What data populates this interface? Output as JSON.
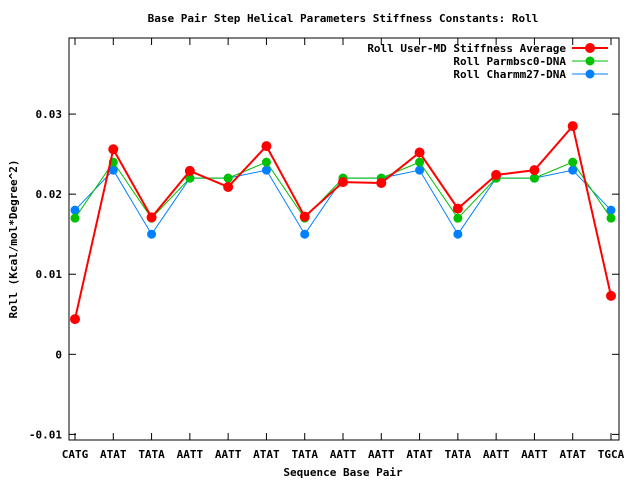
{
  "chart_data": {
    "type": "line",
    "title": "Base Pair Step Helical Parameters Stiffness Constants: Roll",
    "xlabel": "Sequence Base Pair",
    "ylabel": "Roll (Kcal/mol*Degree^2)",
    "categories": [
      "CATG",
      "ATAT",
      "TATA",
      "AATT",
      "AATT",
      "ATAT",
      "TATA",
      "AATT",
      "AATT",
      "ATAT",
      "TATA",
      "AATT",
      "AATT",
      "ATAT",
      "TGCA"
    ],
    "ylim": [
      -0.0107,
      0.0395
    ],
    "yticks": [
      -0.01,
      0,
      0.01,
      0.02,
      0.03
    ],
    "ytick_labels": [
      "-0.01",
      "0",
      "0.01",
      "0.02",
      "0.03"
    ],
    "grid": false,
    "legend_position": "top-right",
    "series": [
      {
        "name": "Roll User-MD Stiffness Average",
        "color": "#ff0000",
        "values": [
          0.0044,
          0.0256,
          0.0171,
          0.0229,
          0.0209,
          0.026,
          0.0172,
          0.0215,
          0.0214,
          0.0252,
          0.0182,
          0.0224,
          0.023,
          0.0285,
          0.0073
        ]
      },
      {
        "name": "Roll Parmbsc0-DNA",
        "color": "#00c000",
        "values": [
          0.017,
          0.024,
          0.017,
          0.022,
          0.022,
          0.024,
          0.017,
          0.022,
          0.022,
          0.024,
          0.017,
          0.022,
          0.022,
          0.024,
          0.017
        ]
      },
      {
        "name": "Roll Charmm27-DNA",
        "color": "#0080ff",
        "values": [
          0.018,
          0.023,
          0.015,
          0.022,
          0.022,
          0.023,
          0.015,
          0.022,
          0.022,
          0.023,
          0.015,
          0.022,
          0.022,
          0.023,
          0.018
        ]
      }
    ]
  }
}
